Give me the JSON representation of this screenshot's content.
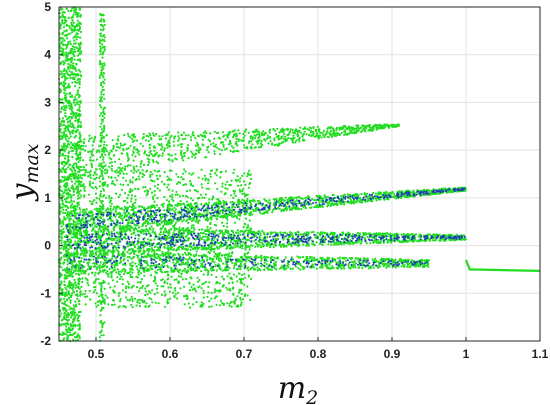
{
  "chart_data": {
    "type": "scatter",
    "xlabel_base": "m",
    "xlabel_sub": "2",
    "ylabel_base": "y",
    "ylabel_sub": "max",
    "xlim": [
      0.45,
      1.1
    ],
    "ylim": [
      -2,
      5
    ],
    "xticks": [
      0.5,
      0.6,
      0.7,
      0.8,
      0.9,
      1.0,
      1.1
    ],
    "xtick_labels": [
      "0.5",
      "0.6",
      "0.7",
      "0.8",
      "0.9",
      "1",
      "1.1"
    ],
    "yticks": [
      -2,
      -1,
      0,
      1,
      2,
      3,
      4,
      5
    ],
    "ytick_labels": [
      "-2",
      "-1",
      "0",
      "1",
      "2",
      "3",
      "4",
      "5"
    ],
    "grid": true,
    "colors": {
      "outer": "#22dd22",
      "inner": "#1e3fb4",
      "axis": "#262626",
      "grid": "#e3e3e3"
    },
    "regions": [
      {
        "name": "chaotic-column",
        "x": [
          0.45,
          0.48
        ],
        "y": [
          -2,
          5
        ]
      },
      {
        "name": "stripe-0.51",
        "x": [
          0.505,
          0.512
        ],
        "y": [
          -2,
          5
        ]
      },
      {
        "name": "upper-branch",
        "x": [
          0.47,
          0.91
        ],
        "y_start": [
          1.4,
          2.3
        ],
        "y_end": [
          2.5,
          2.55
        ]
      },
      {
        "name": "cloud",
        "x": [
          0.48,
          0.71
        ],
        "y": [
          -1.3,
          1.6
        ]
      },
      {
        "name": "branch-1.2",
        "x": [
          0.46,
          1.0
        ],
        "y_start": [
          0.2,
          0.75
        ],
        "y_end": [
          1.15,
          1.22
        ]
      },
      {
        "name": "branch-0.2",
        "x": [
          0.46,
          1.0
        ],
        "y_start": [
          -0.2,
          0.4
        ],
        "y_end": [
          0.12,
          0.22
        ]
      },
      {
        "name": "branch-negative",
        "x": [
          0.46,
          0.95
        ],
        "y_start": [
          -0.6,
          -0.1
        ],
        "y_end": [
          -0.45,
          -0.3
        ]
      },
      {
        "name": "period-1",
        "points": [
          [
            1.0,
            -0.3
          ],
          [
            1.005,
            -0.5
          ],
          [
            1.1,
            -0.53
          ]
        ]
      }
    ]
  }
}
